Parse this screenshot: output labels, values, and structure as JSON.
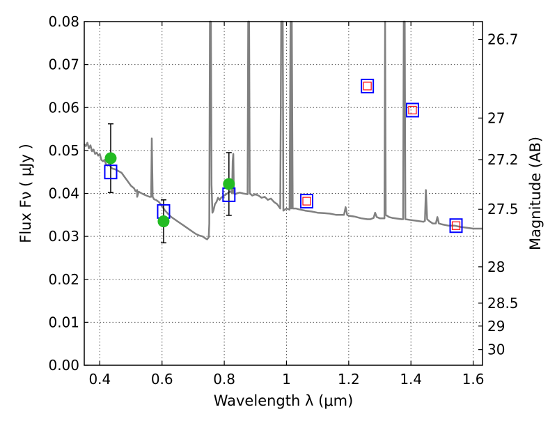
{
  "chart_data": {
    "type": "scatter",
    "xlabel": "Wavelength  λ (μm)",
    "ylabel": "Flux  Fν  ( μJy )",
    "ylabel_right": "Magnitude (AB)",
    "xlim": [
      0.35,
      1.63
    ],
    "ylim": [
      0.0,
      0.08
    ],
    "grid": true,
    "x_ticks": [
      0.4,
      0.6,
      0.8,
      1.0,
      1.2,
      1.4,
      1.6
    ],
    "x_tick_labels": [
      "0.4",
      "0.6",
      "0.8",
      "1",
      "1.2",
      "1.4",
      "1.6"
    ],
    "y_ticks": [
      0.0,
      0.01,
      0.02,
      0.03,
      0.04,
      0.05,
      0.06,
      0.07,
      0.08
    ],
    "y_tick_labels": [
      "0.00",
      "0.01",
      "0.02",
      "0.03",
      "0.04",
      "0.05",
      "0.06",
      "0.07",
      "0.08"
    ],
    "right_ticks": [
      {
        "mag": 26.7,
        "label": "26.7"
      },
      {
        "mag": 27,
        "label": "27"
      },
      {
        "mag": 27.2,
        "label": "27.2"
      },
      {
        "mag": 27.5,
        "label": "27.5"
      },
      {
        "mag": 28,
        "label": "28"
      },
      {
        "mag": 28.5,
        "label": "28.5"
      },
      {
        "mag": 29,
        "label": "29"
      },
      {
        "mag": 30,
        "label": "30"
      }
    ],
    "series": [
      {
        "kind": "spectrum",
        "color": "#808080",
        "points": [
          [
            0.35,
            0.0515
          ],
          [
            0.355,
            0.051
          ],
          [
            0.36,
            0.0518
          ],
          [
            0.365,
            0.0505
          ],
          [
            0.37,
            0.0512
          ],
          [
            0.375,
            0.0498
          ],
          [
            0.38,
            0.0502
          ],
          [
            0.385,
            0.0492
          ],
          [
            0.39,
            0.0495
          ],
          [
            0.395,
            0.0488
          ],
          [
            0.4,
            0.0492
          ],
          [
            0.405,
            0.0478
          ],
          [
            0.41,
            0.0475
          ],
          [
            0.415,
            0.0478
          ],
          [
            0.42,
            0.0468
          ],
          [
            0.425,
            0.0465
          ],
          [
            0.43,
            0.0468
          ],
          [
            0.435,
            0.0462
          ],
          [
            0.44,
            0.0458
          ],
          [
            0.45,
            0.0456
          ],
          [
            0.46,
            0.0452
          ],
          [
            0.47,
            0.0448
          ],
          [
            0.48,
            0.0438
          ],
          [
            0.49,
            0.0428
          ],
          [
            0.5,
            0.0418
          ],
          [
            0.51,
            0.0412
          ],
          [
            0.515,
            0.0405
          ],
          [
            0.52,
            0.0408
          ],
          [
            0.52,
            0.0392
          ],
          [
            0.525,
            0.0404
          ],
          [
            0.53,
            0.0402
          ],
          [
            0.54,
            0.0398
          ],
          [
            0.55,
            0.0395
          ],
          [
            0.56,
            0.0392
          ],
          [
            0.565,
            0.0392
          ],
          [
            0.567,
            0.0528
          ],
          [
            0.57,
            0.0392
          ],
          [
            0.575,
            0.0386
          ],
          [
            0.58,
            0.0385
          ],
          [
            0.59,
            0.038
          ],
          [
            0.6,
            0.037
          ],
          [
            0.61,
            0.036
          ],
          [
            0.62,
            0.0352
          ],
          [
            0.63,
            0.0345
          ],
          [
            0.64,
            0.034
          ],
          [
            0.65,
            0.0335
          ],
          [
            0.66,
            0.033
          ],
          [
            0.67,
            0.0325
          ],
          [
            0.68,
            0.032
          ],
          [
            0.69,
            0.0315
          ],
          [
            0.7,
            0.031
          ],
          [
            0.71,
            0.0305
          ],
          [
            0.72,
            0.0302
          ],
          [
            0.73,
            0.03
          ],
          [
            0.74,
            0.0295
          ],
          [
            0.745,
            0.0293
          ],
          [
            0.75,
            0.0298
          ],
          [
            0.752,
            0.033
          ],
          [
            0.754,
            0.08
          ],
          [
            0.757,
            0.08
          ],
          [
            0.759,
            0.042
          ],
          [
            0.762,
            0.0355
          ],
          [
            0.765,
            0.036
          ],
          [
            0.77,
            0.0375
          ],
          [
            0.775,
            0.038
          ],
          [
            0.78,
            0.039
          ],
          [
            0.785,
            0.0385
          ],
          [
            0.79,
            0.039
          ],
          [
            0.8,
            0.0395
          ],
          [
            0.81,
            0.04
          ],
          [
            0.82,
            0.0405
          ],
          [
            0.825,
            0.04
          ],
          [
            0.827,
            0.0475
          ],
          [
            0.829,
            0.0492
          ],
          [
            0.831,
            0.04
          ],
          [
            0.835,
            0.0398
          ],
          [
            0.84,
            0.04
          ],
          [
            0.85,
            0.0402
          ],
          [
            0.86,
            0.04
          ],
          [
            0.875,
            0.0398
          ],
          [
            0.877,
            0.08
          ],
          [
            0.88,
            0.08
          ],
          [
            0.882,
            0.04
          ],
          [
            0.89,
            0.0395
          ],
          [
            0.9,
            0.0398
          ],
          [
            0.91,
            0.0395
          ],
          [
            0.92,
            0.039
          ],
          [
            0.93,
            0.0392
          ],
          [
            0.94,
            0.0385
          ],
          [
            0.95,
            0.0388
          ],
          [
            0.96,
            0.038
          ],
          [
            0.97,
            0.0375
          ],
          [
            0.98,
            0.0365
          ],
          [
            0.983,
            0.08
          ],
          [
            0.988,
            0.08
          ],
          [
            0.99,
            0.036
          ],
          [
            1.0,
            0.0365
          ],
          [
            1.01,
            0.0362
          ],
          [
            1.013,
            0.08
          ],
          [
            1.015,
            0.0365
          ],
          [
            1.017,
            0.08
          ],
          [
            1.02,
            0.0365
          ],
          [
            1.03,
            0.0365
          ],
          [
            1.04,
            0.0363
          ],
          [
            1.06,
            0.036
          ],
          [
            1.08,
            0.0358
          ],
          [
            1.1,
            0.0355
          ],
          [
            1.12,
            0.0354
          ],
          [
            1.14,
            0.0353
          ],
          [
            1.16,
            0.035
          ],
          [
            1.18,
            0.035
          ],
          [
            1.185,
            0.035
          ],
          [
            1.19,
            0.0368
          ],
          [
            1.195,
            0.035
          ],
          [
            1.2,
            0.0348
          ],
          [
            1.22,
            0.0346
          ],
          [
            1.24,
            0.0342
          ],
          [
            1.26,
            0.034
          ],
          [
            1.27,
            0.034
          ],
          [
            1.28,
            0.0343
          ],
          [
            1.285,
            0.0355
          ],
          [
            1.29,
            0.0345
          ],
          [
            1.3,
            0.0342
          ],
          [
            1.31,
            0.0342
          ],
          [
            1.315,
            0.0342
          ],
          [
            1.317,
            0.08
          ],
          [
            1.319,
            0.035
          ],
          [
            1.33,
            0.0345
          ],
          [
            1.34,
            0.0343
          ],
          [
            1.35,
            0.0342
          ],
          [
            1.37,
            0.034
          ],
          [
            1.375,
            0.034
          ],
          [
            1.377,
            0.08
          ],
          [
            1.38,
            0.08
          ],
          [
            1.382,
            0.034
          ],
          [
            1.4,
            0.0338
          ],
          [
            1.42,
            0.0336
          ],
          [
            1.44,
            0.0334
          ],
          [
            1.445,
            0.0336
          ],
          [
            1.448,
            0.0408
          ],
          [
            1.452,
            0.034
          ],
          [
            1.46,
            0.0335
          ],
          [
            1.47,
            0.033
          ],
          [
            1.48,
            0.033
          ],
          [
            1.485,
            0.0345
          ],
          [
            1.49,
            0.033
          ],
          [
            1.5,
            0.0328
          ],
          [
            1.52,
            0.0325
          ],
          [
            1.54,
            0.0325
          ],
          [
            1.56,
            0.0322
          ],
          [
            1.58,
            0.032
          ],
          [
            1.6,
            0.0318
          ],
          [
            1.62,
            0.0318
          ],
          [
            1.63,
            0.0318
          ]
        ]
      },
      {
        "kind": "observed",
        "color": "#22bb22",
        "points": [
          {
            "x": 0.435,
            "y": 0.0482,
            "err": 0.008
          },
          {
            "x": 0.605,
            "y": 0.0335,
            "err": 0.005
          },
          {
            "x": 0.815,
            "y": 0.0422,
            "err": 0.0073
          }
        ]
      },
      {
        "kind": "model-box",
        "color": "#0000ff",
        "points": [
          {
            "x": 0.435,
            "y": 0.045
          },
          {
            "x": 0.605,
            "y": 0.0358
          },
          {
            "x": 0.815,
            "y": 0.0397
          },
          {
            "x": 1.065,
            "y": 0.0382
          },
          {
            "x": 1.26,
            "y": 0.065
          },
          {
            "x": 1.405,
            "y": 0.0594
          },
          {
            "x": 1.545,
            "y": 0.0325
          }
        ]
      },
      {
        "kind": "model-inner",
        "color": "#ff0000",
        "points": [
          {
            "x": 1.065,
            "y": 0.0382
          },
          {
            "x": 1.26,
            "y": 0.065
          },
          {
            "x": 1.405,
            "y": 0.0594
          },
          {
            "x": 1.545,
            "y": 0.0325
          }
        ]
      }
    ]
  }
}
